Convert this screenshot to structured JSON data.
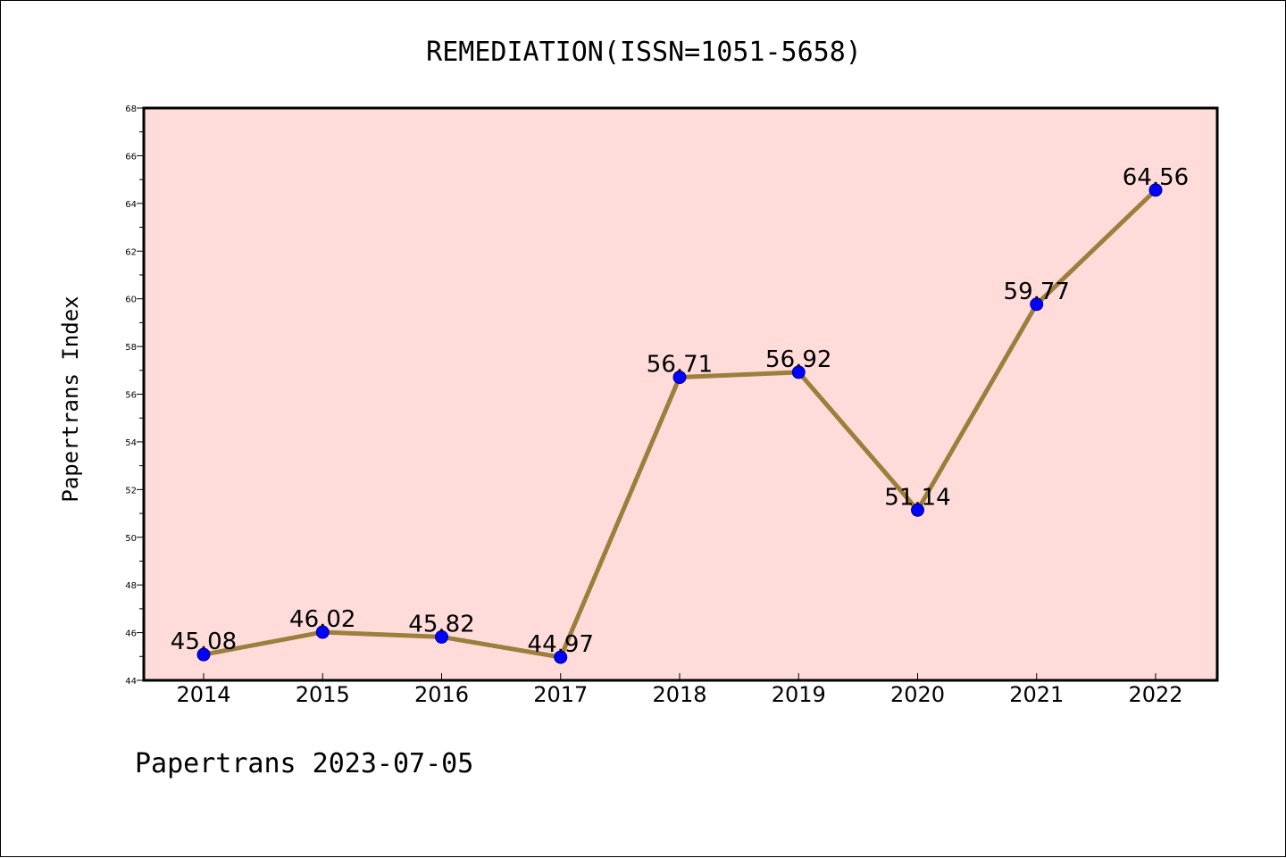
{
  "footer": "Papertrans 2023-07-05",
  "chart_data": {
    "type": "line",
    "title": "REMEDIATION(ISSN=1051-5658)",
    "ylabel": "Papertrans Index",
    "xlabel": "",
    "categories": [
      "2014",
      "2015",
      "2016",
      "2017",
      "2018",
      "2019",
      "2020",
      "2021",
      "2022"
    ],
    "values": [
      45.08,
      46.02,
      45.82,
      44.97,
      56.71,
      56.92,
      51.14,
      59.77,
      64.56
    ],
    "data_labels": [
      "45.08",
      "46.02",
      "45.82",
      "44.97",
      "56.71",
      "56.92",
      "51.14",
      "59.77",
      "64.56"
    ],
    "ylim": [
      44,
      68
    ],
    "yticks": [
      44,
      46,
      48,
      50,
      52,
      54,
      56,
      58,
      60,
      62,
      64,
      66,
      68
    ],
    "grid": false,
    "colors": {
      "plot_background": "#ffdcda",
      "line": "#9c7f3c",
      "marker": "#0000ff"
    }
  }
}
